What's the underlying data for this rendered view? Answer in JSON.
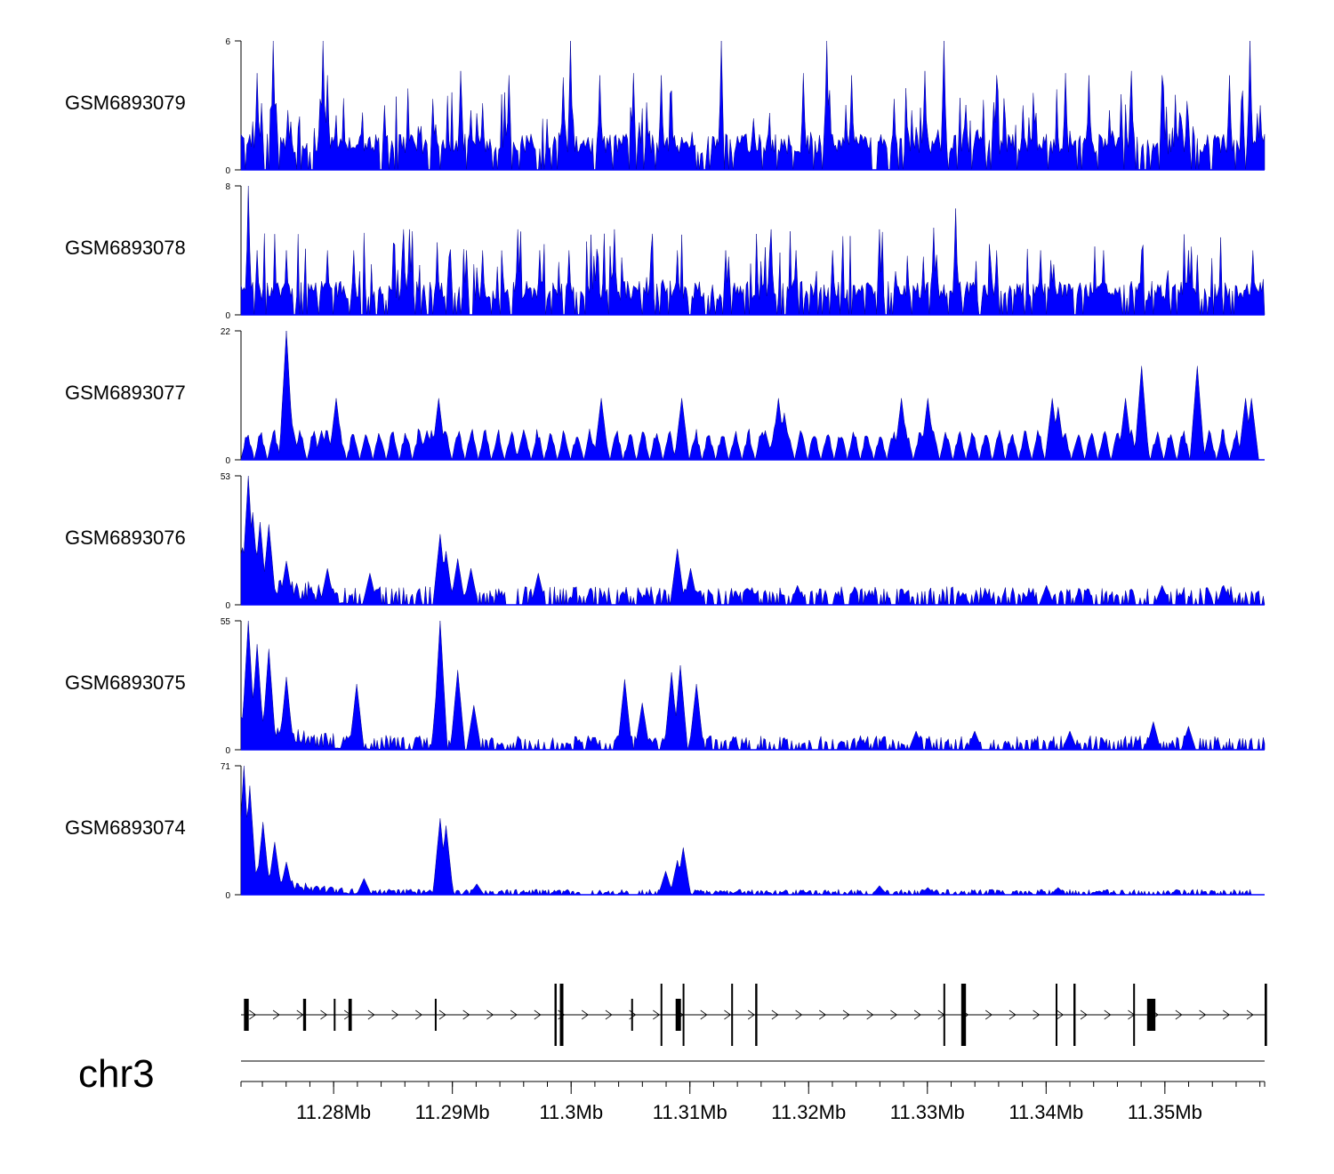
{
  "chart_data": {
    "type": "area",
    "title": "",
    "fill_color": "#0000ff",
    "chromosome": "chr3",
    "x_range_mb": [
      11.2722,
      11.3584
    ],
    "x_ticks": [
      11.28,
      11.29,
      11.3,
      11.31,
      11.32,
      11.33,
      11.34,
      11.35
    ],
    "x_tick_labels": [
      "11.28Mb",
      "11.29Mb",
      "11.3Mb",
      "11.31Mb",
      "11.32Mb",
      "11.33Mb",
      "11.34Mb",
      "11.35Mb"
    ],
    "tracks": [
      {
        "name": "GSM6893079",
        "ymin": 0,
        "ymax": 6,
        "ymin_label": "0",
        "ymax_label": "6",
        "profile": "uniform",
        "peaks": [
          [
            11.2735,
            4.5
          ],
          [
            11.2739,
            3.1
          ],
          [
            11.2749,
            6
          ],
          [
            11.2752,
            3.1
          ],
          [
            11.2788,
            3.3
          ],
          [
            11.2795,
            4.4
          ],
          [
            11.2791,
            6
          ],
          [
            11.2843,
            3.0
          ],
          [
            11.2883,
            3.3
          ],
          [
            11.2907,
            4.6
          ],
          [
            11.2925,
            3.1
          ],
          [
            11.2948,
            4.4
          ],
          [
            11.2993,
            4.3
          ],
          [
            11.3,
            6
          ],
          [
            11.3024,
            4.4
          ],
          [
            11.3052,
            4.5
          ],
          [
            11.3076,
            4.4
          ],
          [
            11.3127,
            6
          ],
          [
            11.3195,
            4.5
          ],
          [
            11.3215,
            6
          ],
          [
            11.3236,
            4.4
          ],
          [
            11.3272,
            3.3
          ],
          [
            11.3298,
            4.6
          ],
          [
            11.3314,
            6
          ],
          [
            11.3358,
            4.4
          ],
          [
            11.338,
            3.0
          ],
          [
            11.3416,
            4.5
          ],
          [
            11.3436,
            4.4
          ],
          [
            11.3472,
            4.6
          ],
          [
            11.3498,
            4.4
          ],
          [
            11.3554,
            4.4
          ],
          [
            11.3572,
            6
          ],
          [
            11.358,
            3.0
          ]
        ],
        "baseline_level": 1.2
      },
      {
        "name": "GSM6893078",
        "ymin": 0,
        "ymax": 8,
        "ymin_label": "0",
        "ymax_label": "8",
        "profile": "uniform",
        "peaks": [
          [
            11.2728,
            8
          ],
          [
            11.2735,
            4.0
          ],
          [
            11.276,
            4.0
          ],
          [
            11.2795,
            4.0
          ],
          [
            11.2817,
            4.0
          ],
          [
            11.2859,
            5.3
          ],
          [
            11.2864,
            5.3
          ],
          [
            11.2897,
            3.6
          ],
          [
            11.2912,
            4.0
          ],
          [
            11.2925,
            4.0
          ],
          [
            11.2955,
            5.3
          ],
          [
            11.2973,
            4.0
          ],
          [
            11.2998,
            4.0
          ],
          [
            11.3037,
            5.3
          ],
          [
            11.3067,
            4.0
          ],
          [
            11.309,
            4.0
          ],
          [
            11.313,
            4.0
          ],
          [
            11.3169,
            5.3
          ],
          [
            11.3189,
            4.0
          ],
          [
            11.322,
            4.0
          ],
          [
            11.326,
            5.3
          ],
          [
            11.3305,
            5.4
          ],
          [
            11.3324,
            6.6
          ],
          [
            11.3358,
            4.0
          ],
          [
            11.3395,
            4.0
          ],
          [
            11.3448,
            4.0
          ],
          [
            11.348,
            4.0
          ],
          [
            11.352,
            4.0
          ],
          [
            11.3574,
            4.0
          ]
        ],
        "baseline_level": 1.5
      },
      {
        "name": "GSM6893077",
        "ymin": 0,
        "ymax": 22,
        "ymin_label": "0",
        "ymax_label": "22",
        "profile": "sparse-triangles",
        "peaks": [
          [
            11.276,
            22
          ],
          [
            11.2765,
            6
          ],
          [
            11.2802,
            10.5
          ],
          [
            11.279,
            5
          ],
          [
            11.2888,
            10.5
          ],
          [
            11.2878,
            5
          ],
          [
            11.296,
            5
          ],
          [
            11.3025,
            10.5
          ],
          [
            11.3093,
            10.5
          ],
          [
            11.3163,
            5
          ],
          [
            11.3174,
            10.5
          ],
          [
            11.318,
            8
          ],
          [
            11.3278,
            10.5
          ],
          [
            11.33,
            10.5
          ],
          [
            11.3405,
            10.5
          ],
          [
            11.341,
            9
          ],
          [
            11.3467,
            10.5
          ],
          [
            11.348,
            16
          ],
          [
            11.3527,
            16
          ],
          [
            11.3568,
            10.5
          ],
          [
            11.3573,
            10.5
          ]
        ],
        "baseline_level": 5
      },
      {
        "name": "GSM6893076",
        "ymin": 0,
        "ymax": 53,
        "ymin_label": "0",
        "ymax_label": "53",
        "profile": "decaying",
        "peaks": [
          [
            11.2728,
            53
          ],
          [
            11.2732,
            38
          ],
          [
            11.2738,
            34
          ],
          [
            11.2745,
            33
          ],
          [
            11.276,
            18
          ],
          [
            11.2795,
            15
          ],
          [
            11.283,
            13
          ],
          [
            11.289,
            29
          ],
          [
            11.2895,
            22
          ],
          [
            11.2905,
            19
          ],
          [
            11.2915,
            15
          ],
          [
            11.2972,
            13
          ],
          [
            11.309,
            23
          ],
          [
            11.31,
            15
          ],
          [
            11.319,
            8
          ],
          [
            11.333,
            5
          ],
          [
            11.335,
            5
          ],
          [
            11.34,
            8
          ],
          [
            11.3498,
            8
          ],
          [
            11.355,
            8
          ]
        ],
        "baseline_level": 5
      },
      {
        "name": "GSM6893075",
        "ymin": 0,
        "ymax": 55,
        "ymin_label": "0",
        "ymax_label": "55",
        "profile": "decaying",
        "peaks": [
          [
            11.2728,
            55
          ],
          [
            11.2735,
            45
          ],
          [
            11.2745,
            43
          ],
          [
            11.276,
            31
          ],
          [
            11.282,
            28
          ],
          [
            11.289,
            55
          ],
          [
            11.2888,
            37
          ],
          [
            11.2905,
            34
          ],
          [
            11.2918,
            19
          ],
          [
            11.3045,
            30
          ],
          [
            11.306,
            20
          ],
          [
            11.3085,
            33
          ],
          [
            11.3092,
            36
          ],
          [
            11.3105,
            28
          ],
          [
            11.329,
            8
          ],
          [
            11.334,
            8
          ],
          [
            11.342,
            8
          ],
          [
            11.349,
            12
          ],
          [
            11.352,
            10
          ]
        ],
        "baseline_level": 4
      },
      {
        "name": "GSM6893074",
        "ymin": 0,
        "ymax": 71,
        "ymin_label": "0",
        "ymax_label": "71",
        "profile": "decaying",
        "peaks": [
          [
            11.2725,
            71
          ],
          [
            11.273,
            60
          ],
          [
            11.274,
            40
          ],
          [
            11.275,
            29
          ],
          [
            11.276,
            18
          ],
          [
            11.2825,
            9
          ],
          [
            11.289,
            42
          ],
          [
            11.2895,
            38
          ],
          [
            11.292,
            6
          ],
          [
            11.308,
            13
          ],
          [
            11.309,
            19
          ],
          [
            11.3095,
            26
          ],
          [
            11.314,
            2
          ],
          [
            11.326,
            5
          ],
          [
            11.33,
            4
          ],
          [
            11.341,
            4
          ]
        ],
        "baseline_level": 2
      }
    ],
    "gene_track": {
      "strand": "+",
      "exons_mb": [
        11.27245,
        11.27743,
        11.28001,
        11.28125,
        11.28852,
        11.2986,
        11.29905,
        11.30506,
        11.30753,
        11.3088,
        11.30939,
        11.31348,
        11.3155,
        11.33135,
        11.33285,
        11.3408,
        11.3423,
        11.34733,
        11.3485,
        11.3584
      ],
      "exon_widths_mb": [
        0.0004,
        0.00025,
        0.0001,
        0.00028,
        0.0001,
        0.00018,
        0.0003,
        0.0001,
        0.00015,
        0.00045,
        0.0001,
        0.00015,
        0.00018,
        0.0001,
        0.0004,
        0.00012,
        0.00018,
        0.00015,
        0.0007,
        0.0002
      ],
      "tall_exons_mb": [
        11.2986,
        11.29905,
        11.30753,
        11.30939,
        11.31348,
        11.3155,
        11.33135,
        11.33285,
        11.3408,
        11.3423,
        11.34733,
        11.3584
      ]
    }
  }
}
